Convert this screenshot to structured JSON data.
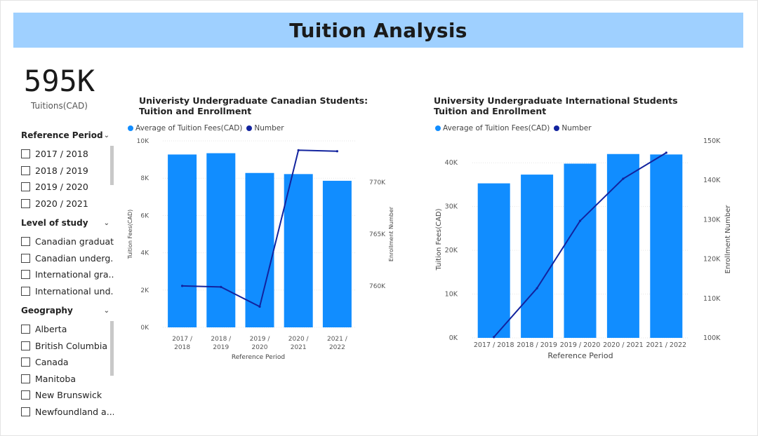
{
  "header": {
    "title": "Tuition Analysis"
  },
  "kpi": {
    "value": "595K",
    "label": "Tuitions(CAD)"
  },
  "slicers": {
    "reference_period": {
      "title": "Reference Period",
      "options": [
        "2017 / 2018",
        "2018 / 2019",
        "2019 / 2020",
        "2020 / 2021"
      ]
    },
    "level_of_study": {
      "title": "Level of study",
      "options": [
        "Canadian graduate",
        "Canadian underg...",
        "International gra...",
        "International und..."
      ]
    },
    "geography": {
      "title": "Geography",
      "options": [
        "Alberta",
        "British Columbia",
        "Canada",
        "Manitoba",
        "New Brunswick",
        "Newfoundland a..."
      ]
    }
  },
  "colors": {
    "bar": "#118dff",
    "line": "#12239e",
    "header": "#9fd0ff"
  },
  "chart_data": [
    {
      "type": "bar",
      "title": "Univeristy Undergraduate Canadian Students: Tuition and Enrollment",
      "legend": [
        "Average of Tuition Fees(CAD)",
        "Number"
      ],
      "categories": [
        "2017 / 2018",
        "2018 / 2019",
        "2019 / 2020",
        "2020 / 2021",
        "2021 / 2022"
      ],
      "xlabel": "Reference Period",
      "ylabel": "Tuition Fees(CAD)",
      "y2label": "Enrollment Number",
      "ylim": [
        0,
        10000
      ],
      "yticks": [
        0,
        2000,
        4000,
        6000,
        8000,
        10000
      ],
      "yticklabels": [
        "0K",
        "2K",
        "4K",
        "6K",
        "8K",
        "10K"
      ],
      "y2lim": [
        756000,
        774000
      ],
      "y2ticks": [
        760000,
        765000,
        770000
      ],
      "y2ticklabels": [
        "760K",
        "765K",
        "770K"
      ],
      "series": [
        {
          "name": "Average of Tuition Fees(CAD)",
          "kind": "bar",
          "axis": "y",
          "values": [
            9270,
            9340,
            8280,
            8220,
            7860
          ]
        },
        {
          "name": "Number",
          "kind": "line",
          "axis": "y2",
          "values": [
            760000,
            759900,
            758000,
            773100,
            773000
          ]
        }
      ]
    },
    {
      "type": "bar",
      "title": "University Undergraduate International Students Tuition and Enrollment",
      "legend": [
        "Average of Tuition Fees(CAD)",
        "Number"
      ],
      "categories": [
        "2017 / 2018",
        "2018 / 2019",
        "2019 / 2020",
        "2020 / 2021",
        "2021 / 2022"
      ],
      "xlabel": "Reference Period",
      "ylabel": "Tuition Fees(CAD)",
      "y2label": "Enrollment Number",
      "ylim": [
        0,
        45000
      ],
      "yticks": [
        0,
        10000,
        20000,
        30000,
        40000
      ],
      "yticklabels": [
        "0K",
        "10K",
        "20K",
        "30K",
        "40K"
      ],
      "y2lim": [
        100000,
        150000
      ],
      "y2ticks": [
        100000,
        110000,
        120000,
        130000,
        140000,
        150000
      ],
      "y2ticklabels": [
        "100K",
        "110K",
        "120K",
        "130K",
        "140K",
        "150K"
      ],
      "series": [
        {
          "name": "Average of Tuition Fees(CAD)",
          "kind": "bar",
          "axis": "y",
          "values": [
            35300,
            37300,
            39800,
            42000,
            41900
          ]
        },
        {
          "name": "Number",
          "kind": "line",
          "axis": "y2",
          "values": [
            100200,
            112600,
            129700,
            140400,
            147000
          ]
        }
      ]
    }
  ]
}
